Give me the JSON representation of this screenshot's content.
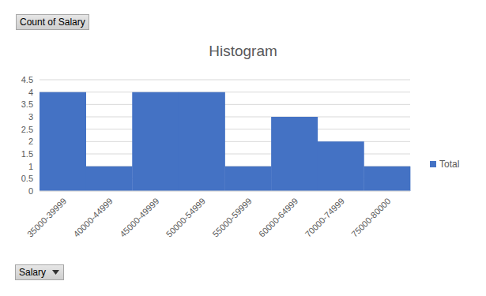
{
  "chart_data": {
    "type": "bar",
    "title": "Histogram",
    "annotations": [
      "Count of Salary",
      "Salary"
    ],
    "categories": [
      "35000-39999",
      "40000-44999",
      "45000-49999",
      "50000-54999",
      "55000-59999",
      "60000-64999",
      "70000-74999",
      "75000-80000"
    ],
    "series": [
      {
        "name": "Total",
        "color": "#4472c4",
        "values": [
          4,
          1,
          4,
          4,
          1,
          3,
          2,
          1
        ]
      }
    ],
    "ylim": [
      0,
      4.5
    ],
    "yticks": [
      0,
      0.5,
      1,
      1.5,
      2,
      2.5,
      3,
      3.5,
      4,
      4.5
    ],
    "grid": true,
    "legend": "right"
  }
}
